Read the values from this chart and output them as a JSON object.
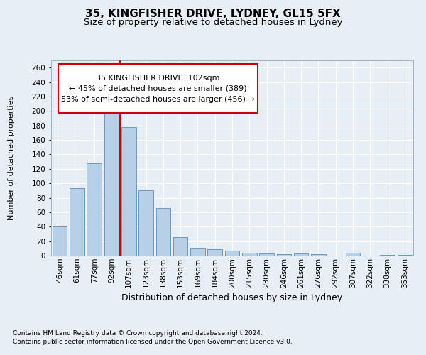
{
  "title1": "35, KINGFISHER DRIVE, LYDNEY, GL15 5FX",
  "title2": "Size of property relative to detached houses in Lydney",
  "xlabel": "Distribution of detached houses by size in Lydney",
  "ylabel": "Number of detached properties",
  "categories": [
    "46sqm",
    "61sqm",
    "77sqm",
    "92sqm",
    "107sqm",
    "123sqm",
    "138sqm",
    "153sqm",
    "169sqm",
    "184sqm",
    "200sqm",
    "215sqm",
    "230sqm",
    "246sqm",
    "261sqm",
    "276sqm",
    "292sqm",
    "307sqm",
    "322sqm",
    "338sqm",
    "353sqm"
  ],
  "values": [
    40,
    93,
    128,
    205,
    178,
    90,
    66,
    26,
    11,
    9,
    7,
    4,
    3,
    2,
    3,
    2,
    0,
    4,
    0,
    1,
    1
  ],
  "bar_color": "#b8cfe8",
  "bar_edge_color": "#5b8db8",
  "vline_x_index": 4,
  "vline_color": "#cc0000",
  "annotation_line1": "35 KINGFISHER DRIVE: 102sqm",
  "annotation_line2": "← 45% of detached houses are smaller (389)",
  "annotation_line3": "53% of semi-detached houses are larger (456) →",
  "annotation_box_edge_color": "#cc0000",
  "ylim": [
    0,
    270
  ],
  "yticks": [
    0,
    20,
    40,
    60,
    80,
    100,
    120,
    140,
    160,
    180,
    200,
    220,
    240,
    260
  ],
  "bg_color": "#e8eef5",
  "plot_bg_color": "#e8eef5",
  "footer1": "Contains HM Land Registry data © Crown copyright and database right 2024.",
  "footer2": "Contains public sector information licensed under the Open Government Licence v3.0.",
  "title1_fontsize": 11,
  "title2_fontsize": 9.5,
  "xlabel_fontsize": 9,
  "ylabel_fontsize": 8,
  "tick_fontsize": 7.5,
  "annotation_fontsize": 8,
  "footer_fontsize": 6.5
}
